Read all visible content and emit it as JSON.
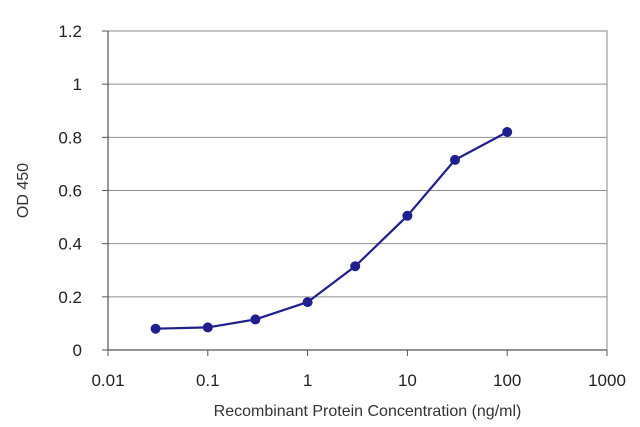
{
  "chart_data": {
    "type": "line",
    "xscale": "log",
    "xlim": [
      0.01,
      1000
    ],
    "ylim": [
      0,
      1.2
    ],
    "xticks": [
      0.01,
      0.1,
      1,
      10,
      100,
      1000
    ],
    "xtick_labels": [
      "0.01",
      "0.1",
      "1",
      "10",
      "100",
      "1000"
    ],
    "yticks": [
      0,
      0.2,
      0.4,
      0.6,
      0.8,
      1,
      1.2
    ],
    "ytick_labels": [
      "0",
      "0.2",
      "0.4",
      "0.6",
      "0.8",
      "1",
      "1.2"
    ],
    "xlabel": "Recombinant Protein Concentration (ng/ml)",
    "ylabel": "OD 450",
    "grid": "horizontal",
    "legend": "none",
    "series": [
      {
        "x": [
          0.03,
          0.1,
          0.3,
          1,
          3,
          10,
          30,
          100
        ],
        "y": [
          0.08,
          0.085,
          0.115,
          0.18,
          0.315,
          0.505,
          0.715,
          0.82
        ],
        "color": "#1f1f8f"
      }
    ]
  }
}
